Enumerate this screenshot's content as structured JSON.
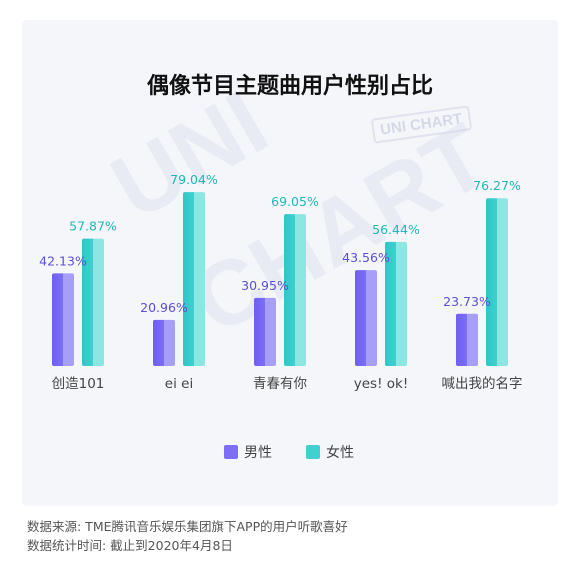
{
  "title": "偶像节目主题曲用户性别占比",
  "watermark": "UNI CHART",
  "colors": {
    "male": "#7c6ef5",
    "male_light": "#a79ef8",
    "female": "#3fd0cf",
    "female_light": "#8ee6e3",
    "label_male": "#5b4fd6",
    "label_female": "#1fb7b7"
  },
  "legend": {
    "male": "男性",
    "female": "女性"
  },
  "footnote": {
    "source": "数据来源: TME腾讯音乐娱乐集团旗下APP的用户听歌喜好",
    "period": "数据统计时间: 截止到2020年4月8日"
  },
  "chart_data": {
    "type": "bar",
    "title": "偶像节目主题曲用户性别占比",
    "categories": [
      "创造101",
      "ei ei",
      "青春有你",
      "yes! ok!",
      "喊出我的名字"
    ],
    "series": [
      {
        "name": "男性",
        "values": [
          42.13,
          20.96,
          30.95,
          43.56,
          23.73
        ],
        "labels": [
          "42.13%",
          "20.96%",
          "30.95%",
          "43.56%",
          "23.73%"
        ]
      },
      {
        "name": "女性",
        "values": [
          57.87,
          79.04,
          69.05,
          56.44,
          76.27
        ],
        "labels": [
          "57.87%",
          "79.04%",
          "69.05%",
          "56.44%",
          "76.27%"
        ]
      }
    ],
    "ylim": [
      0,
      100
    ],
    "grid": false,
    "legend_position": "bottom"
  }
}
